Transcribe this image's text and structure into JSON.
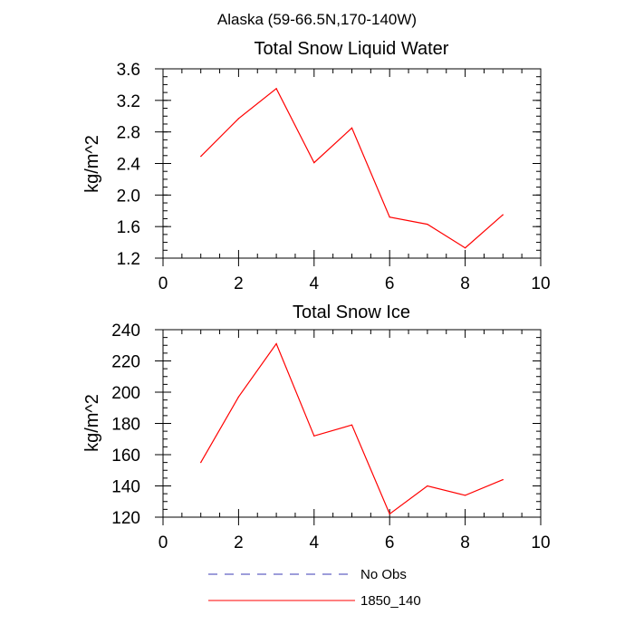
{
  "figure_title": "Alaska (59-66.5N,170-140W)",
  "chart_data": [
    {
      "type": "line",
      "title": "Total Snow Liquid Water",
      "xlabel": "",
      "ylabel": "kg/m^2",
      "xlim": [
        0,
        10
      ],
      "ylim": [
        1.2,
        3.6
      ],
      "x_ticks": [
        0,
        2,
        4,
        6,
        8,
        10
      ],
      "y_ticks": [
        1.2,
        1.6,
        2.0,
        2.4,
        2.8,
        3.2,
        3.6
      ],
      "x_tick_labels": [
        "0",
        "2",
        "4",
        "6",
        "8",
        "10"
      ],
      "y_tick_labels": [
        "1.2",
        "1.6",
        "2.0",
        "2.4",
        "2.8",
        "3.2",
        "3.6"
      ],
      "grid": false,
      "series": [
        {
          "name": "1850_140",
          "color": "#ff0000",
          "style": "solid",
          "x": [
            1,
            2,
            3,
            4,
            5,
            6,
            7,
            8,
            9
          ],
          "y": [
            2.49,
            2.97,
            3.35,
            2.41,
            2.85,
            1.72,
            1.63,
            1.33,
            1.75
          ]
        }
      ]
    },
    {
      "type": "line",
      "title": "Total Snow Ice",
      "xlabel": "",
      "ylabel": "kg/m^2",
      "xlim": [
        0,
        10
      ],
      "ylim": [
        120,
        240
      ],
      "x_ticks": [
        0,
        2,
        4,
        6,
        8,
        10
      ],
      "y_ticks": [
        120,
        140,
        160,
        180,
        200,
        220,
        240
      ],
      "x_tick_labels": [
        "0",
        "2",
        "4",
        "6",
        "8",
        "10"
      ],
      "y_tick_labels": [
        "120",
        "140",
        "160",
        "180",
        "200",
        "220",
        "240"
      ],
      "grid": false,
      "series": [
        {
          "name": "1850_140",
          "color": "#ff0000",
          "style": "solid",
          "x": [
            1,
            2,
            3,
            4,
            5,
            6,
            7,
            8,
            9
          ],
          "y": [
            155,
            197,
            231,
            172,
            179,
            122,
            140,
            134,
            144
          ]
        }
      ]
    }
  ],
  "legend": {
    "placement": "bottom",
    "items": [
      {
        "label": "No Obs",
        "color": "#3b3bb5",
        "style": "dashed"
      },
      {
        "label": "1850_140",
        "color": "#ff0000",
        "style": "solid"
      }
    ]
  }
}
